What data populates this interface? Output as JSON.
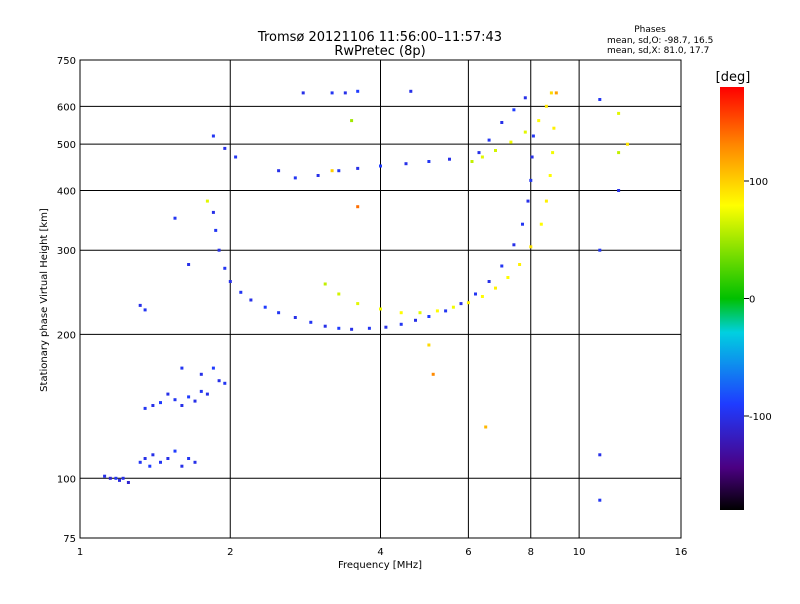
{
  "chart_data": {
    "type": "scatter",
    "title": "Tromsø 20121106 11:56:00–11:57:43",
    "subtitle": "RwPretec (8p)",
    "xlabel": "Frequency [MHz]",
    "ylabel": "Stationary phase Virtual Height [km]",
    "x_scale": "log",
    "y_scale": "log",
    "xlim": [
      1,
      16
    ],
    "ylim": [
      75,
      750
    ],
    "x_ticks": [
      "1",
      "2",
      "4",
      "6",
      "8",
      "10",
      "16"
    ],
    "x_tick_values": [
      1,
      2,
      4,
      6,
      8,
      10,
      16
    ],
    "y_ticks": [
      "75",
      "100",
      "200",
      "300",
      "400",
      "500",
      "600",
      "750"
    ],
    "y_tick_values": [
      75,
      100,
      200,
      300,
      400,
      500,
      600,
      750
    ],
    "grid": true,
    "info": {
      "heading": "Phases",
      "line_o": "mean, sd,O: -98.7, 16.5",
      "line_x": "mean, sd,X:  81.0, 17.7"
    },
    "colorbar": {
      "label": "[deg]",
      "ticks": [
        "100",
        "0",
        "-100"
      ],
      "tick_values": [
        100,
        0,
        -100
      ],
      "range": [
        -180,
        180
      ]
    },
    "series": [
      {
        "mode": "O",
        "points": [
          [
            1.12,
            101,
            -100
          ],
          [
            1.15,
            100,
            -110
          ],
          [
            1.18,
            100,
            -95
          ],
          [
            1.2,
            99,
            -105
          ],
          [
            1.22,
            100,
            -100
          ],
          [
            1.25,
            98,
            -110
          ],
          [
            1.32,
            108,
            -95
          ],
          [
            1.35,
            110,
            -100
          ],
          [
            1.38,
            106,
            -90
          ],
          [
            1.4,
            112,
            -100
          ],
          [
            1.45,
            108,
            -95
          ],
          [
            1.5,
            110,
            -100
          ],
          [
            1.55,
            114,
            -90
          ],
          [
            1.6,
            106,
            -100
          ],
          [
            1.65,
            110,
            -95
          ],
          [
            1.7,
            108,
            -100
          ],
          [
            1.35,
            140,
            -95
          ],
          [
            1.4,
            142,
            -100
          ],
          [
            1.45,
            144,
            -90
          ],
          [
            1.5,
            150,
            -100
          ],
          [
            1.55,
            146,
            -95
          ],
          [
            1.6,
            142,
            -100
          ],
          [
            1.65,
            148,
            -90
          ],
          [
            1.7,
            145,
            -100
          ],
          [
            1.75,
            152,
            -95
          ],
          [
            1.8,
            150,
            -100
          ],
          [
            1.6,
            170,
            -95
          ],
          [
            1.75,
            165,
            -100
          ],
          [
            1.85,
            170,
            -90
          ],
          [
            1.9,
            160,
            -100
          ],
          [
            1.95,
            158,
            -95
          ],
          [
            1.32,
            230,
            -100
          ],
          [
            1.35,
            225,
            -95
          ],
          [
            1.65,
            280,
            -100
          ],
          [
            1.55,
            350,
            -95
          ],
          [
            1.85,
            360,
            -100
          ],
          [
            1.87,
            330,
            -95
          ],
          [
            1.9,
            300,
            -100
          ],
          [
            1.95,
            275,
            -95
          ],
          [
            2.0,
            258,
            -100
          ],
          [
            2.1,
            245,
            -95
          ],
          [
            2.2,
            236,
            -100
          ],
          [
            2.35,
            228,
            -90
          ],
          [
            2.5,
            222,
            -95
          ],
          [
            2.7,
            217,
            -100
          ],
          [
            2.9,
            212,
            -95
          ],
          [
            3.1,
            208,
            -100
          ],
          [
            3.3,
            206,
            -90
          ],
          [
            3.5,
            205,
            -100
          ],
          [
            3.8,
            206,
            -95
          ],
          [
            4.1,
            207,
            -100
          ],
          [
            4.4,
            210,
            -95
          ],
          [
            4.7,
            214,
            -100
          ],
          [
            5.0,
            218,
            -90
          ],
          [
            5.4,
            224,
            -95
          ],
          [
            5.8,
            232,
            -100
          ],
          [
            6.2,
            243,
            -95
          ],
          [
            6.6,
            258,
            -100
          ],
          [
            7.0,
            278,
            -95
          ],
          [
            7.4,
            308,
            -100
          ],
          [
            7.7,
            340,
            -95
          ],
          [
            7.9,
            380,
            -100
          ],
          [
            8.0,
            420,
            -95
          ],
          [
            8.05,
            470,
            -100
          ],
          [
            8.1,
            520,
            -95
          ],
          [
            6.3,
            480,
            -100
          ],
          [
            6.6,
            510,
            -95
          ],
          [
            7.0,
            555,
            -100
          ],
          [
            7.4,
            590,
            -90
          ],
          [
            7.8,
            625,
            -100
          ],
          [
            2.05,
            470,
            -95
          ],
          [
            2.5,
            440,
            -100
          ],
          [
            2.7,
            425,
            -95
          ],
          [
            3.0,
            430,
            -100
          ],
          [
            3.3,
            440,
            -95
          ],
          [
            3.6,
            445,
            -100
          ],
          [
            4.0,
            450,
            -90
          ],
          [
            4.5,
            455,
            -100
          ],
          [
            5.0,
            460,
            -95
          ],
          [
            5.5,
            465,
            -100
          ],
          [
            2.8,
            640,
            -100
          ],
          [
            3.2,
            640,
            -95
          ],
          [
            3.4,
            640,
            -100
          ],
          [
            3.6,
            645,
            -90
          ],
          [
            4.6,
            645,
            -100
          ],
          [
            1.85,
            520,
            -95
          ],
          [
            1.95,
            490,
            -100
          ],
          [
            11.0,
            620,
            -95
          ],
          [
            12.0,
            400,
            -100
          ],
          [
            11.0,
            300,
            -95
          ],
          [
            11.0,
            112,
            -100
          ],
          [
            11.0,
            90,
            -95
          ]
        ]
      },
      {
        "mode": "X",
        "points": [
          [
            3.1,
            255,
            60
          ],
          [
            3.3,
            243,
            65
          ],
          [
            3.6,
            232,
            70
          ],
          [
            4.0,
            226,
            75
          ],
          [
            4.4,
            222,
            80
          ],
          [
            4.8,
            222,
            70
          ],
          [
            5.2,
            224,
            80
          ],
          [
            5.6,
            228,
            75
          ],
          [
            6.0,
            233,
            85
          ],
          [
            6.4,
            240,
            80
          ],
          [
            6.8,
            250,
            85
          ],
          [
            7.2,
            263,
            80
          ],
          [
            7.6,
            280,
            85
          ],
          [
            8.0,
            305,
            90
          ],
          [
            8.4,
            340,
            80
          ],
          [
            8.6,
            380,
            85
          ],
          [
            8.75,
            430,
            80
          ],
          [
            8.85,
            480,
            75
          ],
          [
            8.9,
            540,
            85
          ],
          [
            6.1,
            460,
            60
          ],
          [
            6.4,
            470,
            70
          ],
          [
            6.8,
            485,
            65
          ],
          [
            7.3,
            505,
            75
          ],
          [
            7.8,
            530,
            70
          ],
          [
            8.3,
            560,
            80
          ],
          [
            8.6,
            600,
            90
          ],
          [
            8.8,
            640,
            95
          ],
          [
            1.8,
            380,
            70
          ],
          [
            9.0,
            640,
            120
          ],
          [
            12.0,
            580,
            70
          ],
          [
            12.0,
            480,
            60
          ],
          [
            12.5,
            500,
            90
          ],
          [
            3.5,
            560,
            50
          ],
          [
            3.6,
            370,
            140
          ],
          [
            6.5,
            128,
            110
          ],
          [
            5.1,
            165,
            130
          ],
          [
            5.0,
            190,
            95
          ],
          [
            3.2,
            440,
            100
          ]
        ]
      }
    ]
  }
}
